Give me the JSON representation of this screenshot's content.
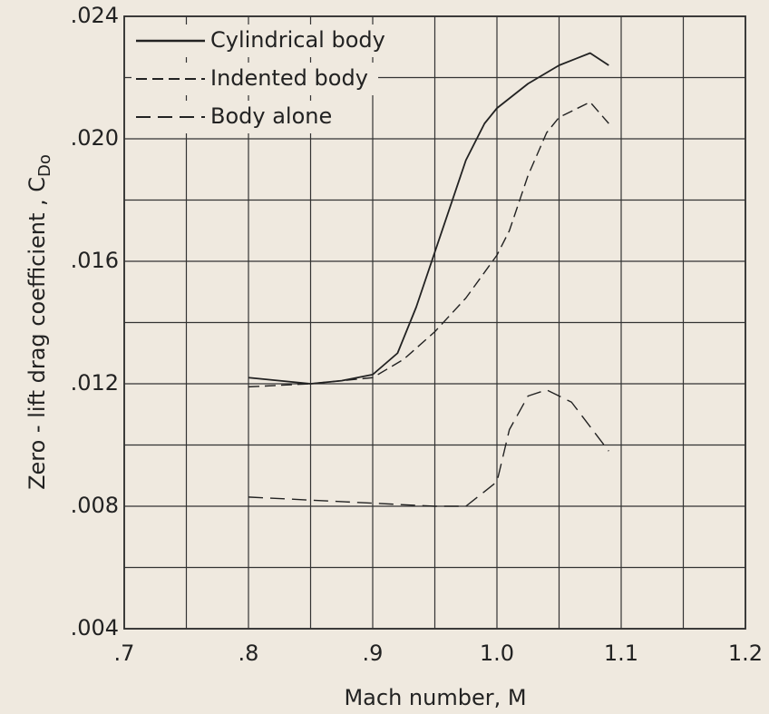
{
  "chart_data": {
    "type": "line",
    "xlabel": "Mach number, M",
    "ylabel": "Zero - lift drag coefficient , C",
    "ylabel_sub": "Do",
    "xlim": [
      0.7,
      1.2
    ],
    "xticks": [
      {
        "value": 0.7,
        "label": ".7"
      },
      {
        "value": 0.8,
        "label": ".8"
      },
      {
        "value": 0.9,
        "label": ".9"
      },
      {
        "value": 1.0,
        "label": "1.0"
      },
      {
        "value": 1.1,
        "label": "1.1"
      },
      {
        "value": 1.2,
        "label": "1.2"
      }
    ],
    "ylim": [
      0.004,
      0.024
    ],
    "yticks": [
      {
        "value": 0.004,
        "label": ".004"
      },
      {
        "value": 0.008,
        "label": ".008"
      },
      {
        "value": 0.012,
        "label": ".012"
      },
      {
        "value": 0.016,
        "label": ".016"
      },
      {
        "value": 0.02,
        "label": ".020"
      },
      {
        "value": 0.024,
        "label": ".024"
      }
    ],
    "grid": true,
    "legend": "upper left",
    "series": [
      {
        "name": "Cylindrical body",
        "color": "#222222",
        "dash": "none",
        "width": 1.8,
        "x": [
          0.8,
          0.825,
          0.85,
          0.875,
          0.9,
          0.92,
          0.935,
          0.95,
          0.96,
          0.975,
          0.99,
          1.0,
          1.025,
          1.05,
          1.075,
          1.09
        ],
        "values": [
          0.0122,
          0.0121,
          0.012,
          0.0121,
          0.0123,
          0.013,
          0.0145,
          0.0163,
          0.0175,
          0.0193,
          0.0205,
          0.021,
          0.0218,
          0.0224,
          0.0228,
          0.0224
        ]
      },
      {
        "name": "Indented body",
        "color": "#222222",
        "dash": "12,6",
        "width": 1.4,
        "x": [
          0.8,
          0.85,
          0.9,
          0.925,
          0.95,
          0.975,
          1.0,
          1.01,
          1.025,
          1.04,
          1.05,
          1.075,
          1.09
        ],
        "values": [
          0.0119,
          0.012,
          0.0122,
          0.0128,
          0.0137,
          0.0148,
          0.0162,
          0.017,
          0.0188,
          0.0202,
          0.0207,
          0.0212,
          0.0205
        ]
      },
      {
        "name": "Body alone",
        "color": "#222222",
        "dash": "16,8",
        "width": 1.4,
        "x": [
          0.8,
          0.85,
          0.9,
          0.95,
          0.975,
          1.0,
          1.01,
          1.025,
          1.04,
          1.06,
          1.09
        ],
        "values": [
          0.0083,
          0.0082,
          0.0081,
          0.008,
          0.008,
          0.0088,
          0.0105,
          0.0116,
          0.0118,
          0.0114,
          0.0098
        ]
      }
    ]
  }
}
